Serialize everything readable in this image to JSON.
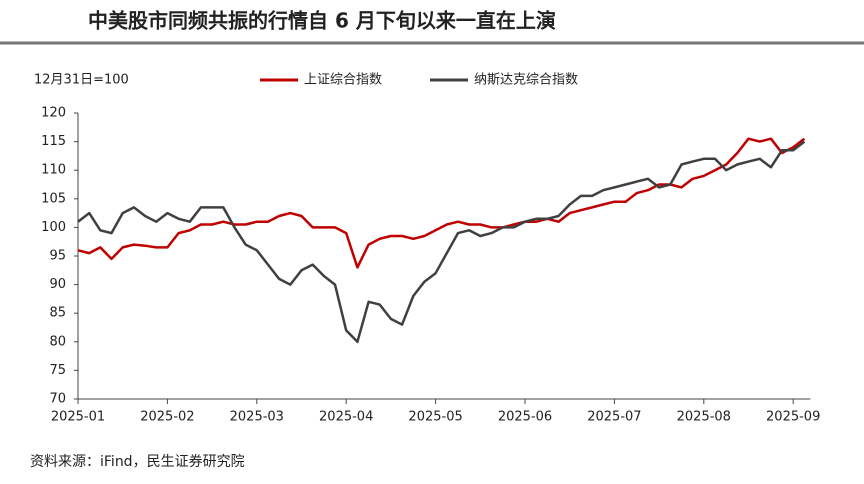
{
  "chart_data": {
    "type": "line",
    "title": "中美股市同频共振的行情自 6 月下旬以来一直在上演",
    "y_label": "12月31日=100",
    "source": "资料来源：iFind，民生证券研究院",
    "categories": [
      "2025-01",
      null,
      null,
      null,
      null,
      null,
      null,
      null,
      "2025-02",
      null,
      null,
      null,
      null,
      null,
      null,
      null,
      "2025-03",
      null,
      null,
      null,
      null,
      null,
      null,
      null,
      "2025-04",
      null,
      null,
      null,
      null,
      null,
      null,
      null,
      "2025-05",
      null,
      null,
      null,
      null,
      null,
      null,
      null,
      "2025-06",
      null,
      null,
      null,
      null,
      null,
      null,
      null,
      "2025-07",
      null,
      null,
      null,
      null,
      null,
      null,
      null,
      "2025-08",
      null,
      null,
      null,
      null,
      null,
      null,
      null,
      "2025-09",
      null
    ],
    "series": [
      {
        "name": "上证综合指数",
        "color": "#c00000",
        "values": [
          96,
          95.5,
          96.5,
          94.5,
          96.5,
          97,
          96.8,
          96.5,
          96.5,
          99,
          99.5,
          100.5,
          100.5,
          101,
          100.5,
          100.5,
          101,
          101,
          102,
          102.5,
          102,
          100,
          100,
          100,
          99,
          93,
          97,
          98,
          98.5,
          98.5,
          98,
          98.5,
          99.5,
          100.5,
          101,
          100.5,
          100.5,
          100,
          100,
          100.5,
          101,
          101,
          101.5,
          101,
          102.5,
          103,
          103.5,
          104,
          104.5,
          104.5,
          106,
          106.5,
          107.5,
          107.5,
          107,
          108.5,
          109,
          110,
          111,
          113,
          115.5,
          115,
          115.5,
          113,
          114,
          115.5
        ]
      },
      {
        "name": "纳斯达克综合指数",
        "color": "#404040",
        "values": [
          101,
          102.5,
          99.5,
          99,
          102.5,
          103.5,
          102,
          101,
          102.5,
          101.5,
          101,
          103.5,
          103.5,
          103.5,
          100,
          97,
          96,
          93.5,
          91,
          90,
          92.5,
          93.5,
          91.5,
          90,
          82,
          80,
          87,
          86.5,
          84,
          83,
          88,
          90.5,
          92,
          95.5,
          99,
          99.5,
          98.5,
          99,
          100,
          100,
          101,
          101.5,
          101.5,
          102,
          104,
          105.5,
          105.5,
          106.5,
          107,
          107.5,
          108,
          108.5,
          107,
          107.5,
          111,
          111.5,
          112,
          112,
          110,
          111,
          111.5,
          112,
          110.5,
          113.5,
          113.5,
          115
        ]
      }
    ],
    "ylim": [
      70,
      120
    ],
    "yticks": [
      70,
      75,
      80,
      85,
      90,
      95,
      100,
      105,
      110,
      115,
      120
    ]
  }
}
